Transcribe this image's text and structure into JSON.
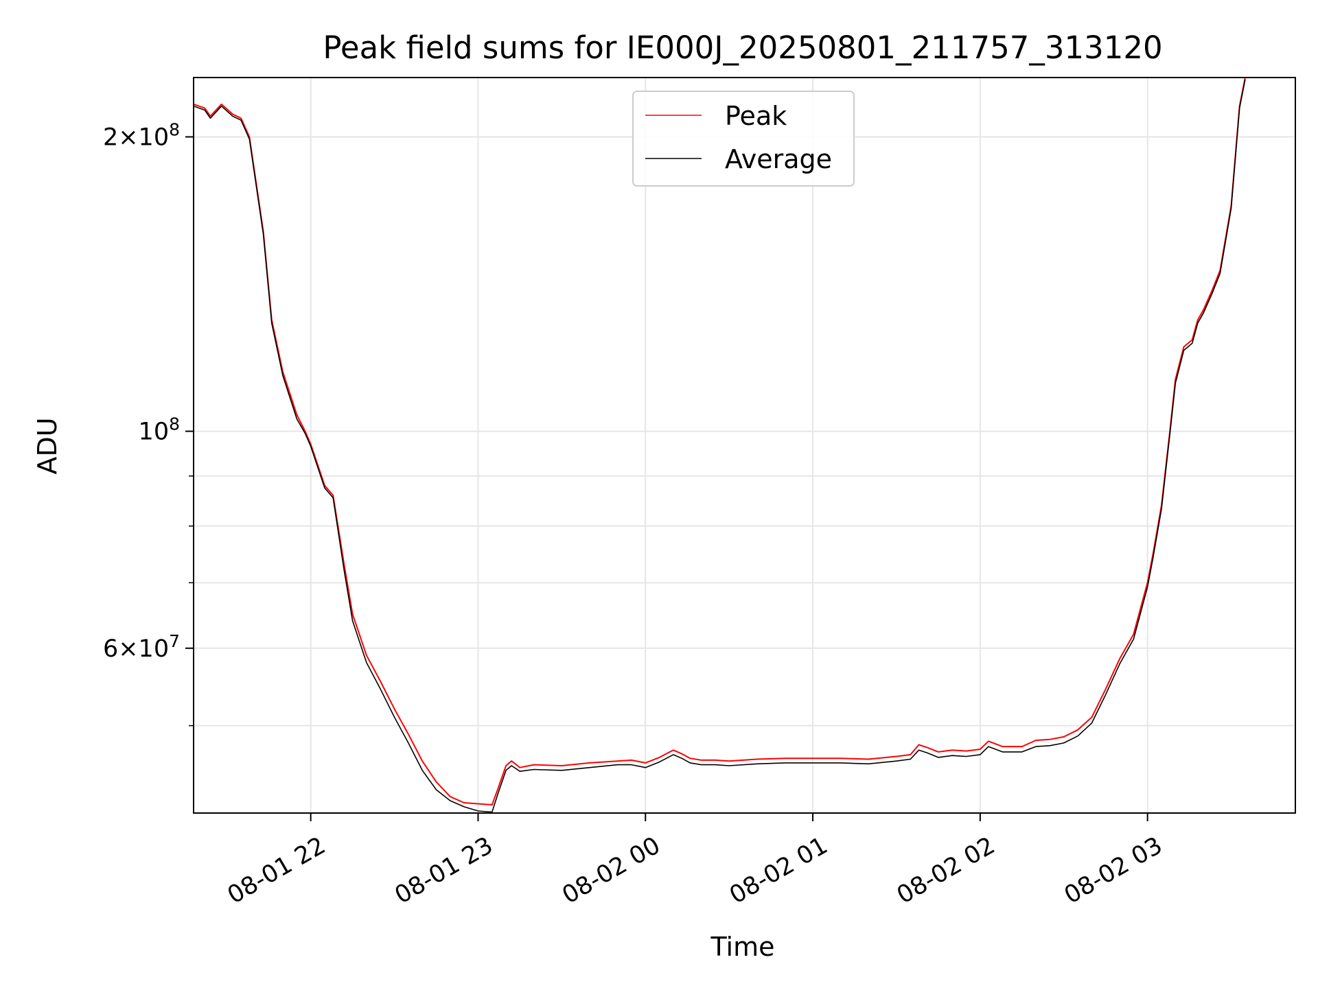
{
  "chart_data": {
    "type": "line",
    "title": "Peak field sums for IE000J_20250801_211757_313120",
    "xlabel": "Time",
    "ylabel": "ADU",
    "yscale": "log",
    "grid": true,
    "legend_position": "upper center",
    "xlim": [
      "2025-08-01 21:18",
      "2025-08-02 03:53"
    ],
    "ylim": [
      40700000,
      230000000
    ],
    "x_ticks": [
      {
        "value": "2025-08-01 22:00",
        "label": "08-01 22"
      },
      {
        "value": "2025-08-01 23:00",
        "label": "08-01 23"
      },
      {
        "value": "2025-08-02 00:00",
        "label": "08-02 00"
      },
      {
        "value": "2025-08-02 01:00",
        "label": "08-02 01"
      },
      {
        "value": "2025-08-02 02:00",
        "label": "08-02 02"
      },
      {
        "value": "2025-08-02 03:00",
        "label": "08-02 03"
      }
    ],
    "y_major_ticks": [
      {
        "value": 60000000,
        "mantissa": "6",
        "base": "10",
        "exponent": "7"
      },
      {
        "value": 100000000,
        "mantissa": "",
        "base": "10",
        "exponent": "8"
      },
      {
        "value": 200000000,
        "mantissa": "2",
        "base": "10",
        "exponent": "8"
      }
    ],
    "y_minor_ticks": [
      50000000,
      70000000,
      80000000,
      90000000
    ],
    "series": [
      {
        "name": "Peak",
        "color": "#ff0000",
        "x": [
          "2025-08-01 21:18",
          "2025-08-01 21:22",
          "2025-08-01 21:24",
          "2025-08-01 21:28",
          "2025-08-01 21:32",
          "2025-08-01 21:35",
          "2025-08-01 21:38",
          "2025-08-01 21:43",
          "2025-08-01 21:46",
          "2025-08-01 21:50",
          "2025-08-01 21:55",
          "2025-08-01 21:58",
          "2025-08-01 22:00",
          "2025-08-01 22:05",
          "2025-08-01 22:08",
          "2025-08-01 22:12",
          "2025-08-01 22:15",
          "2025-08-01 22:20",
          "2025-08-01 22:25",
          "2025-08-01 22:30",
          "2025-08-01 22:35",
          "2025-08-01 22:40",
          "2025-08-01 22:45",
          "2025-08-01 22:50",
          "2025-08-01 22:55",
          "2025-08-01 23:00",
          "2025-08-01 23:05",
          "2025-08-01 23:07",
          "2025-08-01 23:10",
          "2025-08-01 23:12",
          "2025-08-01 23:15",
          "2025-08-01 23:20",
          "2025-08-01 23:30",
          "2025-08-01 23:40",
          "2025-08-01 23:50",
          "2025-08-01 23:55",
          "2025-08-02 00:00",
          "2025-08-02 00:05",
          "2025-08-02 00:10",
          "2025-08-02 00:13",
          "2025-08-02 00:16",
          "2025-08-02 00:20",
          "2025-08-02 00:25",
          "2025-08-02 00:30",
          "2025-08-02 00:40",
          "2025-08-02 00:50",
          "2025-08-02 01:00",
          "2025-08-02 01:10",
          "2025-08-02 01:20",
          "2025-08-02 01:30",
          "2025-08-02 01:35",
          "2025-08-02 01:38",
          "2025-08-02 01:41",
          "2025-08-02 01:45",
          "2025-08-02 01:50",
          "2025-08-02 01:55",
          "2025-08-02 02:00",
          "2025-08-02 02:03",
          "2025-08-02 02:08",
          "2025-08-02 02:15",
          "2025-08-02 02:20",
          "2025-08-02 02:25",
          "2025-08-02 02:30",
          "2025-08-02 02:35",
          "2025-08-02 02:40",
          "2025-08-02 02:45",
          "2025-08-02 02:50",
          "2025-08-02 02:55",
          "2025-08-02 03:00",
          "2025-08-02 03:02",
          "2025-08-02 03:05",
          "2025-08-02 03:08",
          "2025-08-02 03:10",
          "2025-08-02 03:13",
          "2025-08-02 03:16",
          "2025-08-02 03:18",
          "2025-08-02 03:20",
          "2025-08-02 03:23",
          "2025-08-02 03:26",
          "2025-08-02 03:30",
          "2025-08-02 03:33",
          "2025-08-02 03:35"
        ],
        "values": [
          216000000,
          214000000,
          210000000,
          216000000,
          211000000,
          209000000,
          200000000,
          160000000,
          130000000,
          115000000,
          104000000,
          100000000,
          97000000,
          88000000,
          86000000,
          73000000,
          65000000,
          59000000,
          55500000,
          52000000,
          49000000,
          46000000,
          43800000,
          42300000,
          41700000,
          41600000,
          41500000,
          43000000,
          45500000,
          46000000,
          45300000,
          45600000,
          45500000,
          45800000,
          46000000,
          46100000,
          45800000,
          46400000,
          47200000,
          46800000,
          46300000,
          46100000,
          46100000,
          46000000,
          46200000,
          46300000,
          46300000,
          46300000,
          46200000,
          46500000,
          46700000,
          47800000,
          47500000,
          47000000,
          47200000,
          47100000,
          47300000,
          48200000,
          47600000,
          47600000,
          48300000,
          48400000,
          48700000,
          49500000,
          51000000,
          54500000,
          58500000,
          62000000,
          70000000,
          75000000,
          84000000,
          100000000,
          113000000,
          122000000,
          124000000,
          130000000,
          133000000,
          139000000,
          146000000,
          170000000,
          215000000,
          230000000
        ]
      },
      {
        "name": "Average",
        "color": "#000000",
        "x": [
          "2025-08-01 21:18",
          "2025-08-01 21:22",
          "2025-08-01 21:24",
          "2025-08-01 21:28",
          "2025-08-01 21:32",
          "2025-08-01 21:35",
          "2025-08-01 21:38",
          "2025-08-01 21:43",
          "2025-08-01 21:46",
          "2025-08-01 21:50",
          "2025-08-01 21:55",
          "2025-08-01 21:58",
          "2025-08-01 22:00",
          "2025-08-01 22:05",
          "2025-08-01 22:08",
          "2025-08-01 22:12",
          "2025-08-01 22:15",
          "2025-08-01 22:20",
          "2025-08-01 22:25",
          "2025-08-01 22:30",
          "2025-08-01 22:35",
          "2025-08-01 22:40",
          "2025-08-01 22:45",
          "2025-08-01 22:50",
          "2025-08-01 22:55",
          "2025-08-01 23:00",
          "2025-08-01 23:05",
          "2025-08-01 23:07",
          "2025-08-01 23:10",
          "2025-08-01 23:12",
          "2025-08-01 23:15",
          "2025-08-01 23:20",
          "2025-08-01 23:30",
          "2025-08-01 23:40",
          "2025-08-01 23:50",
          "2025-08-01 23:55",
          "2025-08-02 00:00",
          "2025-08-02 00:05",
          "2025-08-02 00:10",
          "2025-08-02 00:13",
          "2025-08-02 00:16",
          "2025-08-02 00:20",
          "2025-08-02 00:25",
          "2025-08-02 00:30",
          "2025-08-02 00:40",
          "2025-08-02 00:50",
          "2025-08-02 01:00",
          "2025-08-02 01:10",
          "2025-08-02 01:20",
          "2025-08-02 01:30",
          "2025-08-02 01:35",
          "2025-08-02 01:38",
          "2025-08-02 01:41",
          "2025-08-02 01:45",
          "2025-08-02 01:50",
          "2025-08-02 01:55",
          "2025-08-02 02:00",
          "2025-08-02 02:03",
          "2025-08-02 02:08",
          "2025-08-02 02:15",
          "2025-08-02 02:20",
          "2025-08-02 02:25",
          "2025-08-02 02:30",
          "2025-08-02 02:35",
          "2025-08-02 02:40",
          "2025-08-02 02:45",
          "2025-08-02 02:50",
          "2025-08-02 02:55",
          "2025-08-02 03:00",
          "2025-08-02 03:02",
          "2025-08-02 03:05",
          "2025-08-02 03:08",
          "2025-08-02 03:10",
          "2025-08-02 03:13",
          "2025-08-02 03:16",
          "2025-08-02 03:18",
          "2025-08-02 03:20",
          "2025-08-02 03:23",
          "2025-08-02 03:26",
          "2025-08-02 03:30",
          "2025-08-02 03:33",
          "2025-08-02 03:35"
        ],
        "values": [
          215000000,
          213000000,
          209000000,
          215000000,
          210000000,
          208000000,
          199000000,
          159000000,
          129000000,
          114000000,
          103000000,
          99500000,
          96500000,
          87500000,
          85500000,
          72000000,
          64000000,
          58000000,
          54500000,
          51000000,
          48000000,
          45000000,
          43000000,
          41900000,
          41300000,
          40900000,
          40800000,
          42500000,
          45000000,
          45500000,
          44900000,
          45100000,
          45000000,
          45300000,
          45600000,
          45600000,
          45300000,
          45900000,
          46700000,
          46300000,
          45800000,
          45600000,
          45600000,
          45500000,
          45700000,
          45800000,
          45800000,
          45800000,
          45700000,
          46000000,
          46200000,
          47200000,
          46900000,
          46400000,
          46600000,
          46500000,
          46700000,
          47600000,
          47000000,
          47000000,
          47600000,
          47700000,
          48000000,
          48800000,
          50300000,
          53800000,
          57800000,
          61300000,
          69300000,
          74300000,
          83300000,
          99300000,
          112000000,
          121000000,
          123000000,
          129000000,
          132000000,
          138000000,
          145000000,
          169000000,
          214000000,
          229000000
        ]
      }
    ]
  }
}
